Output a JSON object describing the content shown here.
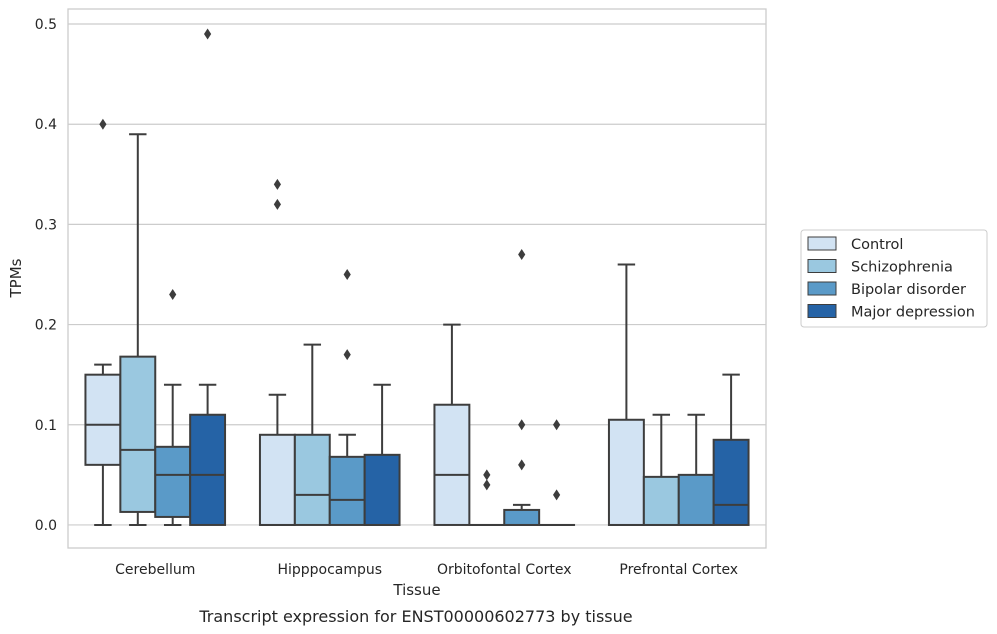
{
  "caption": "Transcript expression for ENST00000602773 by tissue",
  "chart_data": {
    "type": "box",
    "xlabel": "Tissue",
    "ylabel": "TPMs",
    "ylim": [
      -0.023,
      0.515
    ],
    "yticks": [
      0.0,
      0.1,
      0.2,
      0.3,
      0.4,
      0.5
    ],
    "ytick_labels": [
      "0.0",
      "0.1",
      "0.2",
      "0.3",
      "0.4",
      "0.5"
    ],
    "grid": true,
    "legend_position": "right",
    "categories": [
      "Cerebellum",
      "Hipppocampus",
      "Orbitofontal Cortex",
      "Prefrontal Cortex"
    ],
    "series": [
      {
        "name": "Control",
        "color": "#d2e3f3",
        "boxes": [
          {
            "whisker_low": 0.0,
            "q1": 0.06,
            "median": 0.1,
            "q3": 0.15,
            "whisker_high": 0.16,
            "outliers": [
              0.4
            ]
          },
          {
            "whisker_low": 0.0,
            "q1": 0.0,
            "median": 0.0,
            "q3": 0.09,
            "whisker_high": 0.13,
            "outliers": [
              0.32,
              0.34
            ]
          },
          {
            "whisker_low": 0.0,
            "q1": 0.0,
            "median": 0.05,
            "q3": 0.12,
            "whisker_high": 0.2,
            "outliers": []
          },
          {
            "whisker_low": 0.0,
            "q1": 0.0,
            "median": 0.0,
            "q3": 0.105,
            "whisker_high": 0.26,
            "outliers": []
          }
        ]
      },
      {
        "name": "Schizophrenia",
        "color": "#9ac8e0",
        "boxes": [
          {
            "whisker_low": 0.0,
            "q1": 0.013,
            "median": 0.075,
            "q3": 0.168,
            "whisker_high": 0.39,
            "outliers": []
          },
          {
            "whisker_low": 0.0,
            "q1": 0.0,
            "median": 0.03,
            "q3": 0.09,
            "whisker_high": 0.18,
            "outliers": []
          },
          {
            "whisker_low": 0.0,
            "q1": 0.0,
            "median": 0.0,
            "q3": 0.0,
            "whisker_high": 0.0,
            "outliers": [
              0.04,
              0.05
            ]
          },
          {
            "whisker_low": 0.0,
            "q1": 0.0,
            "median": 0.0,
            "q3": 0.048,
            "whisker_high": 0.11,
            "outliers": []
          }
        ]
      },
      {
        "name": "Bipolar disorder",
        "color": "#5a9ac8",
        "boxes": [
          {
            "whisker_low": 0.0,
            "q1": 0.008,
            "median": 0.05,
            "q3": 0.078,
            "whisker_high": 0.14,
            "outliers": [
              0.23
            ]
          },
          {
            "whisker_low": 0.0,
            "q1": 0.0,
            "median": 0.025,
            "q3": 0.068,
            "whisker_high": 0.09,
            "outliers": [
              0.17,
              0.25
            ]
          },
          {
            "whisker_low": 0.0,
            "q1": 0.0,
            "median": 0.0,
            "q3": 0.015,
            "whisker_high": 0.02,
            "outliers": [
              0.06,
              0.1,
              0.27
            ]
          },
          {
            "whisker_low": 0.0,
            "q1": 0.0,
            "median": 0.0,
            "q3": 0.05,
            "whisker_high": 0.11,
            "outliers": []
          }
        ]
      },
      {
        "name": "Major depression",
        "color": "#2563a6",
        "boxes": [
          {
            "whisker_low": 0.0,
            "q1": 0.0,
            "median": 0.05,
            "q3": 0.11,
            "whisker_high": 0.14,
            "outliers": [
              0.49
            ]
          },
          {
            "whisker_low": 0.0,
            "q1": 0.0,
            "median": 0.0,
            "q3": 0.07,
            "whisker_high": 0.14,
            "outliers": []
          },
          {
            "whisker_low": 0.0,
            "q1": 0.0,
            "median": 0.0,
            "q3": 0.0,
            "whisker_high": 0.0,
            "outliers": [
              0.03,
              0.1
            ]
          },
          {
            "whisker_low": 0.0,
            "q1": 0.0,
            "median": 0.02,
            "q3": 0.085,
            "whisker_high": 0.15,
            "outliers": []
          }
        ]
      }
    ]
  }
}
